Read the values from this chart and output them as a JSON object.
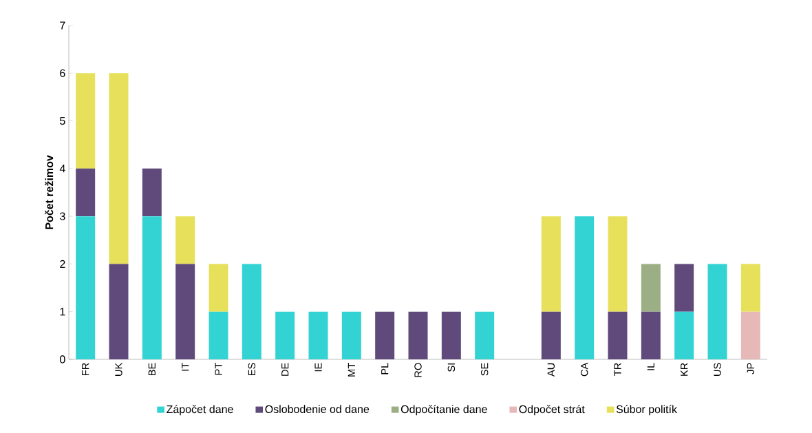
{
  "chart_data": {
    "type": "bar",
    "stacked": true,
    "ylabel": "Počet režimov",
    "categories": [
      "FR",
      "UK",
      "BE",
      "IT",
      "PT",
      "ES",
      "DE",
      "IE",
      "MT",
      "PL",
      "RO",
      "SI",
      "SE",
      null,
      "AU",
      "CA",
      "TR",
      "IL",
      "KR",
      "US",
      "JP"
    ],
    "series": [
      {
        "name": "Zápočet dane",
        "color": "#33d3d3",
        "values": [
          3,
          0,
          3,
          0,
          1,
          2,
          1,
          1,
          1,
          0,
          0,
          0,
          1,
          null,
          0,
          3,
          0,
          0,
          1,
          2,
          0
        ]
      },
      {
        "name": "Oslobodenie od dane",
        "color": "#5f4a7b",
        "values": [
          1,
          2,
          1,
          2,
          0,
          0,
          0,
          0,
          0,
          1,
          1,
          1,
          0,
          null,
          1,
          0,
          1,
          1,
          1,
          0,
          0
        ]
      },
      {
        "name": "Odpočítanie dane",
        "color": "#9caf84",
        "values": [
          0,
          0,
          0,
          0,
          0,
          0,
          0,
          0,
          0,
          0,
          0,
          0,
          0,
          null,
          0,
          0,
          0,
          1,
          0,
          0,
          0
        ]
      },
      {
        "name": "Odpočet strát",
        "color": "#e6b9b8",
        "values": [
          0,
          0,
          0,
          0,
          0,
          0,
          0,
          0,
          0,
          0,
          0,
          0,
          0,
          null,
          0,
          0,
          0,
          0,
          0,
          0,
          1
        ]
      },
      {
        "name": "Súbor politík",
        "color": "#e6e05a",
        "values": [
          2,
          4,
          0,
          1,
          1,
          0,
          0,
          0,
          0,
          0,
          0,
          0,
          0,
          null,
          2,
          0,
          2,
          0,
          0,
          0,
          1
        ]
      }
    ],
    "ylim": [
      0,
      7
    ],
    "yticks": [
      0,
      1,
      2,
      3,
      4,
      5,
      6,
      7
    ],
    "grid": false,
    "legend": "bottom"
  }
}
